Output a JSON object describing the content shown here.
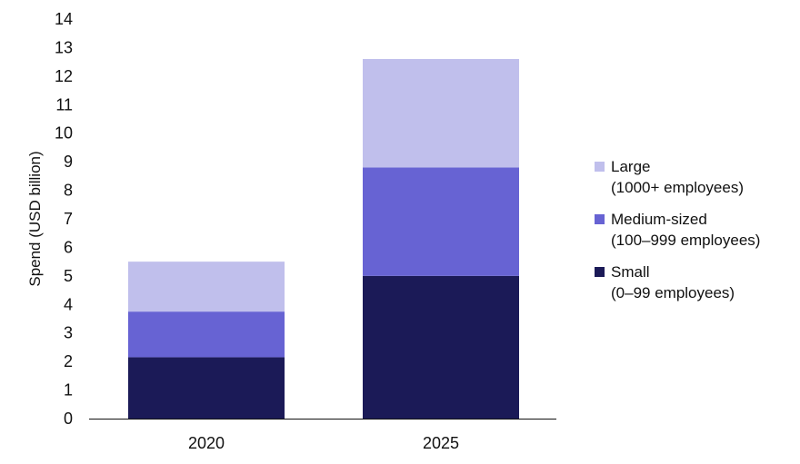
{
  "chart_data": {
    "type": "bar",
    "stacked": true,
    "categories": [
      "2020",
      "2025"
    ],
    "series": [
      {
        "name": "Small",
        "sublabel": "(0–99 employees)",
        "color": "#1b1a57",
        "values": [
          2.15,
          5.0
        ]
      },
      {
        "name": "Medium-sized",
        "sublabel": "(100–999 employees)",
        "color": "#6763d3",
        "values": [
          1.6,
          3.8
        ]
      },
      {
        "name": "Large",
        "sublabel": "(1000+ employees)",
        "color": "#c0bfec",
        "values": [
          1.75,
          3.8
        ]
      }
    ],
    "title": "",
    "xlabel": "",
    "ylabel": "Spend (USD billion)",
    "ylim": [
      0,
      14
    ],
    "yticks": [
      "0",
      "1",
      "2",
      "3",
      "4",
      "5",
      "6",
      "7",
      "8",
      "9",
      "10",
      "11",
      "12",
      "13",
      "14"
    ],
    "grid": false,
    "legend_position": "right"
  }
}
